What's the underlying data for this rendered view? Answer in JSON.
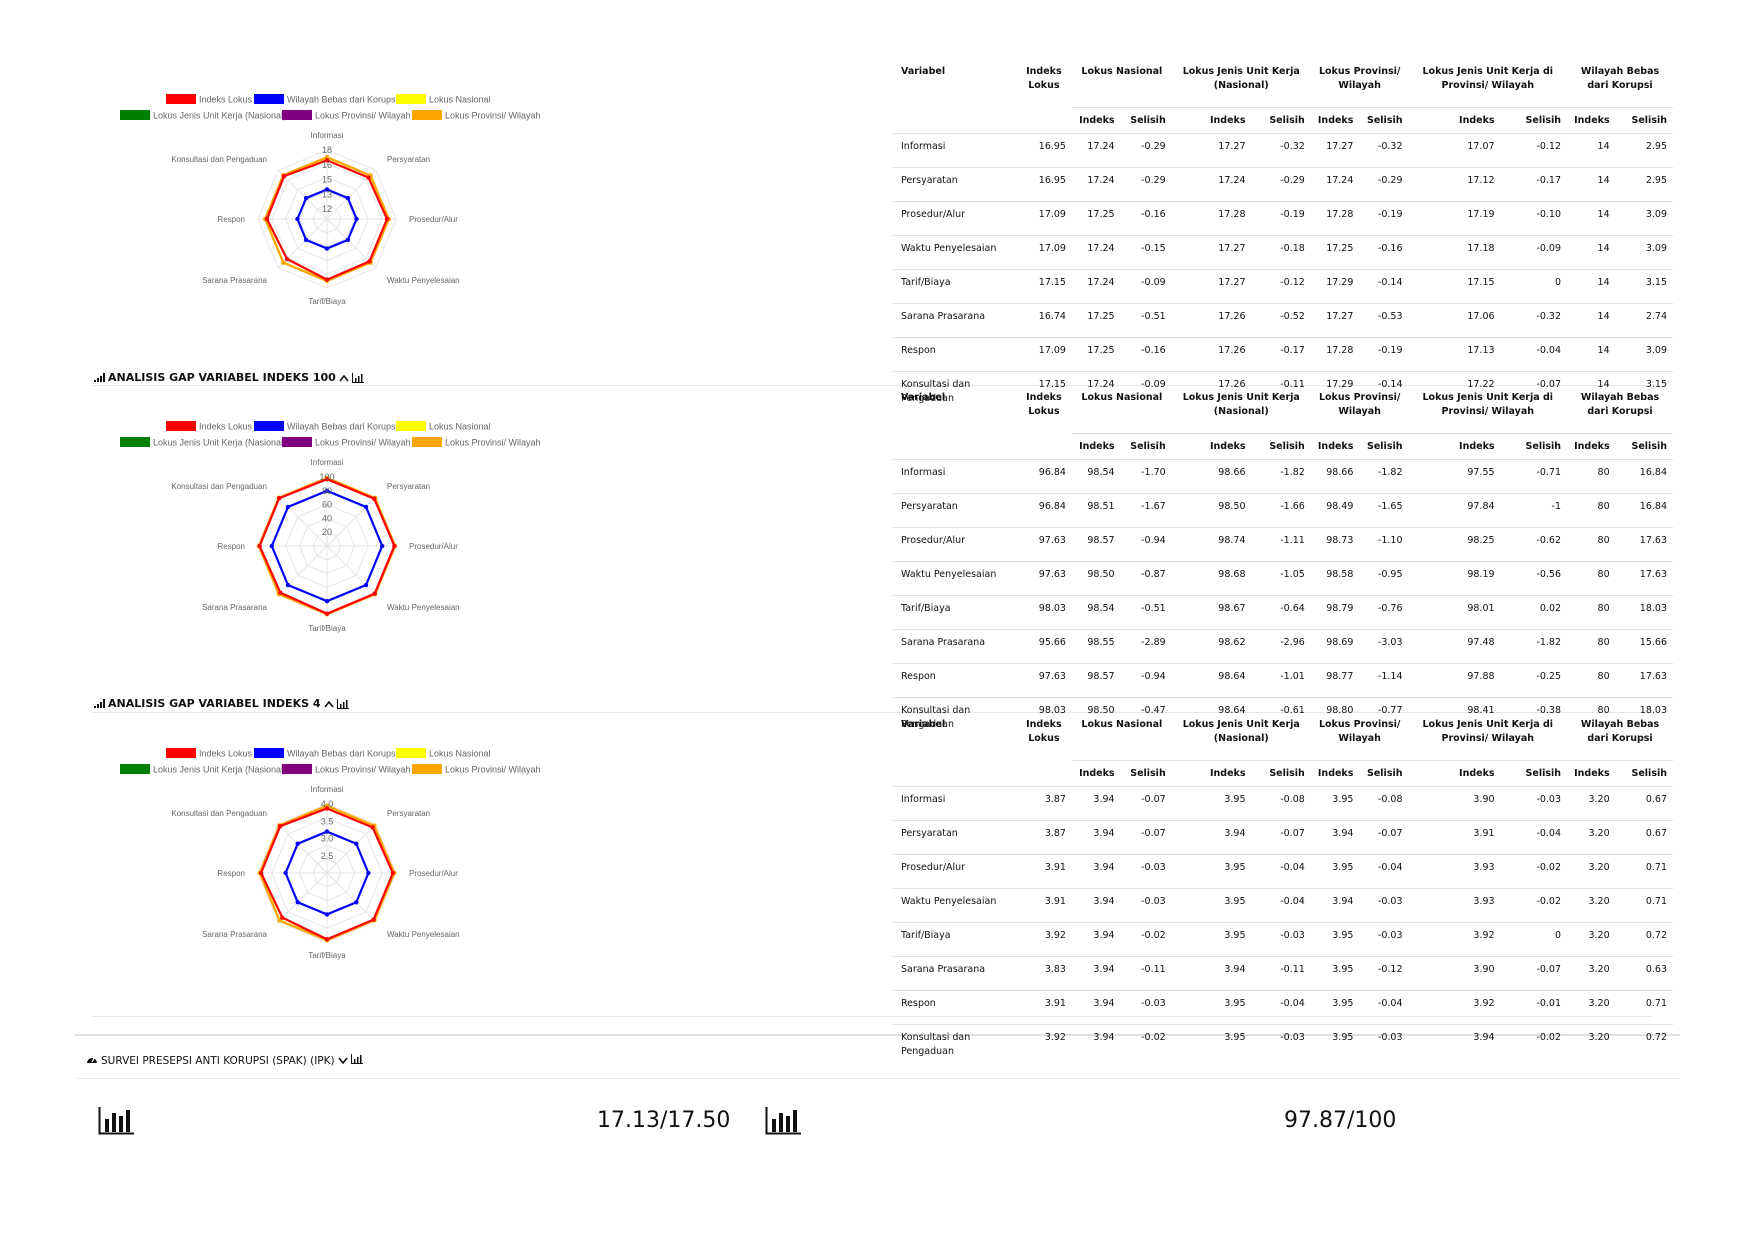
{
  "legend": [
    "Indeks Lokus",
    "Wilayah Bebas dari Korupsi",
    "Lokus Nasional",
    "Lokus Jenis Unit Kerja (Nasional)",
    "Lokus Provinsi/ Wilayah",
    "Lokus Provinsi/ Wilayah"
  ],
  "colors": {
    "indeks_lokus": "#ff0000",
    "wbk": "#0000ff",
    "lokus_nasional": "#ffff00",
    "jenis_unit": "#008000",
    "provinsi": "#800080",
    "provinsi2": "#ffa500"
  },
  "axes": [
    "Informasi",
    "Persyaratan",
    "Prosedur/Alur",
    "Waktu Penyelesaian",
    "Tarif/Biaya",
    "Sarana Prasarana",
    "Respon",
    "Konsultasi dan Pengaduan"
  ],
  "table_headers": {
    "variabel": "Variabel",
    "indeks_lokus": "Indeks Lokus",
    "lokus_nasional": "Lokus Nasional",
    "jenis_unit": "Lokus Jenis Unit Kerja (Nasional)",
    "provinsi": "Lokus Provinsi/ Wilayah",
    "jenis_unit_provinsi": "Lokus Jenis Unit Kerja di Provinsi/ Wilayah",
    "wbk": "Wilayah Bebas dari Korupsi",
    "indeks": "Indeks",
    "selisih": "Selisih"
  },
  "sections": [
    {
      "title": "",
      "chart_data": {
        "type": "radar",
        "ylim": [
          11,
          18
        ],
        "ticks": [
          "12",
          "13",
          "15",
          "16",
          "18"
        ],
        "tick_values": [
          12,
          13.5,
          15,
          16.5,
          18
        ],
        "categories": [
          "Informasi",
          "Persyaratan",
          "Prosedur/Alur",
          "Waktu Penyelesaian",
          "Tarif/Biaya",
          "Sarana Prasarana",
          "Respon",
          "Konsultasi dan Pengaduan"
        ],
        "series": [
          {
            "name": "Wilayah Bebas dari Korupsi",
            "color_key": "wbk",
            "values": [
              14,
              14,
              14,
              14,
              14,
              14,
              14,
              14
            ]
          },
          {
            "name": "Lokus Nasional",
            "color_key": "lokus_nasional",
            "values": [
              17.24,
              17.24,
              17.25,
              17.24,
              17.24,
              17.25,
              17.25,
              17.24
            ]
          },
          {
            "name": "Lokus Provinsi/ Wilayah",
            "color_key": "provinsi2",
            "values": [
              17.27,
              17.24,
              17.28,
              17.25,
              17.29,
              17.27,
              17.28,
              17.29
            ]
          },
          {
            "name": "Indeks Lokus",
            "color_key": "indeks_lokus",
            "values": [
              16.95,
              16.95,
              17.09,
              17.09,
              17.15,
              16.74,
              17.09,
              17.15
            ]
          }
        ]
      },
      "rows": [
        {
          "var": "Informasi",
          "lokus": "16.95",
          "nas_i": "17.24",
          "nas_s": "-0.29",
          "jen_i": "17.27",
          "jen_s": "-0.32",
          "prov_i": "17.27",
          "prov_s": "-0.32",
          "jp_i": "17.07",
          "jp_s": "-0.12",
          "wbk_i": "14",
          "wbk_s": "2.95"
        },
        {
          "var": "Persyaratan",
          "lokus": "16.95",
          "nas_i": "17.24",
          "nas_s": "-0.29",
          "jen_i": "17.24",
          "jen_s": "-0.29",
          "prov_i": "17.24",
          "prov_s": "-0.29",
          "jp_i": "17.12",
          "jp_s": "-0.17",
          "wbk_i": "14",
          "wbk_s": "2.95"
        },
        {
          "var": "Prosedur/Alur",
          "lokus": "17.09",
          "nas_i": "17.25",
          "nas_s": "-0.16",
          "jen_i": "17.28",
          "jen_s": "-0.19",
          "prov_i": "17.28",
          "prov_s": "-0.19",
          "jp_i": "17.19",
          "jp_s": "-0.10",
          "wbk_i": "14",
          "wbk_s": "3.09"
        },
        {
          "var": "Waktu Penyelesaian",
          "lokus": "17.09",
          "nas_i": "17.24",
          "nas_s": "-0.15",
          "jen_i": "17.27",
          "jen_s": "-0.18",
          "prov_i": "17.25",
          "prov_s": "-0.16",
          "jp_i": "17.18",
          "jp_s": "-0.09",
          "wbk_i": "14",
          "wbk_s": "3.09"
        },
        {
          "var": "Tarif/Biaya",
          "lokus": "17.15",
          "nas_i": "17.24",
          "nas_s": "-0.09",
          "jen_i": "17.27",
          "jen_s": "-0.12",
          "prov_i": "17.29",
          "prov_s": "-0.14",
          "jp_i": "17.15",
          "jp_s": "0",
          "wbk_i": "14",
          "wbk_s": "3.15"
        },
        {
          "var": "Sarana Prasarana",
          "lokus": "16.74",
          "nas_i": "17.25",
          "nas_s": "-0.51",
          "jen_i": "17.26",
          "jen_s": "-0.52",
          "prov_i": "17.27",
          "prov_s": "-0.53",
          "jp_i": "17.06",
          "jp_s": "-0.32",
          "wbk_i": "14",
          "wbk_s": "2.74"
        },
        {
          "var": "Respon",
          "lokus": "17.09",
          "nas_i": "17.25",
          "nas_s": "-0.16",
          "jen_i": "17.26",
          "jen_s": "-0.17",
          "prov_i": "17.28",
          "prov_s": "-0.19",
          "jp_i": "17.13",
          "jp_s": "-0.04",
          "wbk_i": "14",
          "wbk_s": "3.09"
        },
        {
          "var": "Konsultasi dan Pengaduan",
          "lokus": "17.15",
          "nas_i": "17.24",
          "nas_s": "-0.09",
          "jen_i": "17.26",
          "jen_s": "-0.11",
          "prov_i": "17.29",
          "prov_s": "-0.14",
          "jp_i": "17.22",
          "jp_s": "-0.07",
          "wbk_i": "14",
          "wbk_s": "3.15"
        }
      ]
    },
    {
      "title": "ANALISIS GAP VARIABEL INDEKS 100",
      "chart_data": {
        "type": "radar",
        "ylim": [
          0,
          100
        ],
        "ticks": [
          "20",
          "40",
          "60",
          "80",
          "100"
        ],
        "tick_values": [
          20,
          40,
          60,
          80,
          100
        ],
        "categories": [
          "Informasi",
          "Persyaratan",
          "Prosedur/Alur",
          "Waktu Penyelesaian",
          "Tarif/Biaya",
          "Sarana Prasarana",
          "Respon",
          "Konsultasi dan Pengaduan"
        ],
        "series": [
          {
            "name": "Wilayah Bebas dari Korupsi",
            "color_key": "wbk",
            "values": [
              80,
              80,
              80,
              80,
              80,
              80,
              80,
              80
            ]
          },
          {
            "name": "Lokus Nasional",
            "color_key": "lokus_nasional",
            "values": [
              98.54,
              98.51,
              98.57,
              98.5,
              98.54,
              98.55,
              98.57,
              98.5
            ]
          },
          {
            "name": "Lokus Provinsi/ Wilayah",
            "color_key": "provinsi2",
            "values": [
              98.66,
              98.49,
              98.73,
              98.58,
              98.79,
              98.69,
              98.77,
              98.8
            ]
          },
          {
            "name": "Indeks Lokus",
            "color_key": "indeks_lokus",
            "values": [
              96.84,
              96.84,
              97.63,
              97.63,
              98.03,
              95.66,
              97.63,
              98.03
            ]
          }
        ]
      },
      "rows": [
        {
          "var": "Informasi",
          "lokus": "96.84",
          "nas_i": "98.54",
          "nas_s": "-1.70",
          "jen_i": "98.66",
          "jen_s": "-1.82",
          "prov_i": "98.66",
          "prov_s": "-1.82",
          "jp_i": "97.55",
          "jp_s": "-0.71",
          "wbk_i": "80",
          "wbk_s": "16.84"
        },
        {
          "var": "Persyaratan",
          "lokus": "96.84",
          "nas_i": "98.51",
          "nas_s": "-1.67",
          "jen_i": "98.50",
          "jen_s": "-1.66",
          "prov_i": "98.49",
          "prov_s": "-1.65",
          "jp_i": "97.84",
          "jp_s": "-1",
          "wbk_i": "80",
          "wbk_s": "16.84"
        },
        {
          "var": "Prosedur/Alur",
          "lokus": "97.63",
          "nas_i": "98.57",
          "nas_s": "-0.94",
          "jen_i": "98.74",
          "jen_s": "-1.11",
          "prov_i": "98.73",
          "prov_s": "-1.10",
          "jp_i": "98.25",
          "jp_s": "-0.62",
          "wbk_i": "80",
          "wbk_s": "17.63"
        },
        {
          "var": "Waktu Penyelesaian",
          "lokus": "97.63",
          "nas_i": "98.50",
          "nas_s": "-0.87",
          "jen_i": "98.68",
          "jen_s": "-1.05",
          "prov_i": "98.58",
          "prov_s": "-0.95",
          "jp_i": "98.19",
          "jp_s": "-0.56",
          "wbk_i": "80",
          "wbk_s": "17.63"
        },
        {
          "var": "Tarif/Biaya",
          "lokus": "98.03",
          "nas_i": "98.54",
          "nas_s": "-0.51",
          "jen_i": "98.67",
          "jen_s": "-0.64",
          "prov_i": "98.79",
          "prov_s": "-0.76",
          "jp_i": "98.01",
          "jp_s": "0.02",
          "wbk_i": "80",
          "wbk_s": "18.03"
        },
        {
          "var": "Sarana Prasarana",
          "lokus": "95.66",
          "nas_i": "98.55",
          "nas_s": "-2.89",
          "jen_i": "98.62",
          "jen_s": "-2.96",
          "prov_i": "98.69",
          "prov_s": "-3.03",
          "jp_i": "97.48",
          "jp_s": "-1.82",
          "wbk_i": "80",
          "wbk_s": "15.66"
        },
        {
          "var": "Respon",
          "lokus": "97.63",
          "nas_i": "98.57",
          "nas_s": "-0.94",
          "jen_i": "98.64",
          "jen_s": "-1.01",
          "prov_i": "98.77",
          "prov_s": "-1.14",
          "jp_i": "97.88",
          "jp_s": "-0.25",
          "wbk_i": "80",
          "wbk_s": "17.63"
        },
        {
          "var": "Konsultasi dan Pengaduan",
          "lokus": "98.03",
          "nas_i": "98.50",
          "nas_s": "-0.47",
          "jen_i": "98.64",
          "jen_s": "-0.61",
          "prov_i": "98.80",
          "prov_s": "-0.77",
          "jp_i": "98.41",
          "jp_s": "-0.38",
          "wbk_i": "80",
          "wbk_s": "18.03"
        }
      ]
    },
    {
      "title": "ANALISIS GAP VARIABEL INDEKS 4",
      "chart_data": {
        "type": "radar",
        "ylim": [
          2,
          4
        ],
        "ticks": [
          "2.5",
          "3.0",
          "3.5",
          "4.0"
        ],
        "tick_values": [
          2.5,
          3.0,
          3.5,
          4.0
        ],
        "categories": [
          "Informasi",
          "Persyaratan",
          "Prosedur/Alur",
          "Waktu Penyelesaian",
          "Tarif/Biaya",
          "Sarana Prasarana",
          "Respon",
          "Konsultasi dan Pengaduan"
        ],
        "series": [
          {
            "name": "Wilayah Bebas dari Korupsi",
            "color_key": "wbk",
            "values": [
              3.2,
              3.2,
              3.2,
              3.2,
              3.2,
              3.2,
              3.2,
              3.2
            ]
          },
          {
            "name": "Lokus Nasional",
            "color_key": "lokus_nasional",
            "values": [
              3.94,
              3.94,
              3.94,
              3.94,
              3.94,
              3.94,
              3.94,
              3.94
            ]
          },
          {
            "name": "Lokus Provinsi/ Wilayah",
            "color_key": "provinsi2",
            "values": [
              3.95,
              3.94,
              3.95,
              3.94,
              3.95,
              3.95,
              3.95,
              3.95
            ]
          },
          {
            "name": "Indeks Lokus",
            "color_key": "indeks_lokus",
            "values": [
              3.87,
              3.87,
              3.91,
              3.91,
              3.92,
              3.83,
              3.91,
              3.92
            ]
          }
        ]
      },
      "rows": [
        {
          "var": "Informasi",
          "lokus": "3.87",
          "nas_i": "3.94",
          "nas_s": "-0.07",
          "jen_i": "3.95",
          "jen_s": "-0.08",
          "prov_i": "3.95",
          "prov_s": "-0.08",
          "jp_i": "3.90",
          "jp_s": "-0.03",
          "wbk_i": "3.20",
          "wbk_s": "0.67"
        },
        {
          "var": "Persyaratan",
          "lokus": "3.87",
          "nas_i": "3.94",
          "nas_s": "-0.07",
          "jen_i": "3.94",
          "jen_s": "-0.07",
          "prov_i": "3.94",
          "prov_s": "-0.07",
          "jp_i": "3.91",
          "jp_s": "-0.04",
          "wbk_i": "3.20",
          "wbk_s": "0.67"
        },
        {
          "var": "Prosedur/Alur",
          "lokus": "3.91",
          "nas_i": "3.94",
          "nas_s": "-0.03",
          "jen_i": "3.95",
          "jen_s": "-0.04",
          "prov_i": "3.95",
          "prov_s": "-0.04",
          "jp_i": "3.93",
          "jp_s": "-0.02",
          "wbk_i": "3.20",
          "wbk_s": "0.71"
        },
        {
          "var": "Waktu Penyelesaian",
          "lokus": "3.91",
          "nas_i": "3.94",
          "nas_s": "-0.03",
          "jen_i": "3.95",
          "jen_s": "-0.04",
          "prov_i": "3.94",
          "prov_s": "-0.03",
          "jp_i": "3.93",
          "jp_s": "-0.02",
          "wbk_i": "3.20",
          "wbk_s": "0.71"
        },
        {
          "var": "Tarif/Biaya",
          "lokus": "3.92",
          "nas_i": "3.94",
          "nas_s": "-0.02",
          "jen_i": "3.95",
          "jen_s": "-0.03",
          "prov_i": "3.95",
          "prov_s": "-0.03",
          "jp_i": "3.92",
          "jp_s": "0",
          "wbk_i": "3.20",
          "wbk_s": "0.72"
        },
        {
          "var": "Sarana Prasarana",
          "lokus": "3.83",
          "nas_i": "3.94",
          "nas_s": "-0.11",
          "jen_i": "3.94",
          "jen_s": "-0.11",
          "prov_i": "3.95",
          "prov_s": "-0.12",
          "jp_i": "3.90",
          "jp_s": "-0.07",
          "wbk_i": "3.20",
          "wbk_s": "0.63"
        },
        {
          "var": "Respon",
          "lokus": "3.91",
          "nas_i": "3.94",
          "nas_s": "-0.03",
          "jen_i": "3.95",
          "jen_s": "-0.04",
          "prov_i": "3.95",
          "prov_s": "-0.04",
          "jp_i": "3.92",
          "jp_s": "-0.01",
          "wbk_i": "3.20",
          "wbk_s": "0.71"
        },
        {
          "var": "Konsultasi dan Pengaduan",
          "lokus": "3.92",
          "nas_i": "3.94",
          "nas_s": "-0.02",
          "jen_i": "3.95",
          "jen_s": "-0.03",
          "prov_i": "3.95",
          "prov_s": "-0.03",
          "jp_i": "3.94",
          "jp_s": "-0.02",
          "wbk_i": "3.20",
          "wbk_s": "0.72"
        }
      ]
    }
  ],
  "spak": {
    "title": "SURVEI PRESEPSI ANTI KORUPSI (SPAK) (IPK)",
    "score1": "17.13/17.50",
    "score2": "97.87/100"
  }
}
